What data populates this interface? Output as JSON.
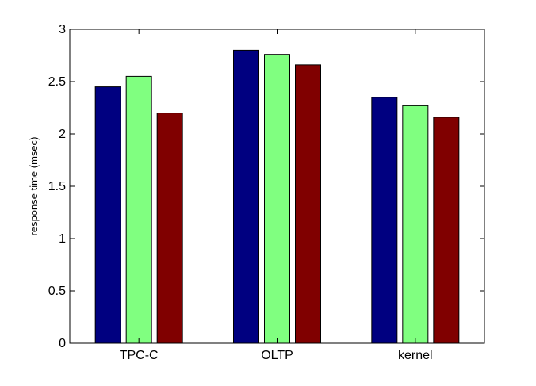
{
  "chart_data": {
    "type": "bar",
    "title": "",
    "xlabel": "",
    "ylabel": "response time (msec)",
    "ylim": [
      0,
      3
    ],
    "yticks": [
      0,
      0.5,
      1,
      1.5,
      2,
      2.5,
      3
    ],
    "ytick_labels": [
      "0",
      "0.5",
      "1",
      "1.5",
      "2",
      "2.5",
      "3"
    ],
    "categories": [
      "TPC-C",
      "OLTP",
      "kernel"
    ],
    "series": [
      {
        "color": "#000080",
        "values": [
          2.45,
          2.8,
          2.35
        ]
      },
      {
        "color": "#80ff80",
        "values": [
          2.55,
          2.76,
          2.27
        ]
      },
      {
        "color": "#800000",
        "values": [
          2.2,
          2.66,
          2.16
        ]
      }
    ],
    "grid": false,
    "legend": "none"
  }
}
